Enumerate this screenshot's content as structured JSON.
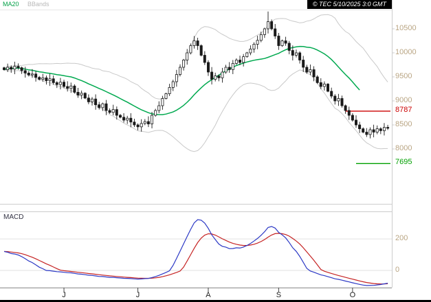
{
  "header": {
    "ma_label": "MA20",
    "bbands_label": "BBands",
    "copyright": "© TEC 5/10/2025 3:0 GMT"
  },
  "chart_data": {
    "type": "candlestick",
    "title": "",
    "x_axis": {
      "month_labels": [
        "J",
        "J",
        "A",
        "S",
        "O"
      ],
      "month_tick_indices": [
        17,
        38,
        58,
        78,
        99
      ]
    },
    "y_axis": {
      "ticks": [
        10500,
        10000,
        9500,
        9000,
        8500,
        8000
      ],
      "ylim": [
        6857,
        10886
      ],
      "label_color": "#b9a583"
    },
    "series": [
      {
        "name": "close",
        "values": [
          9650,
          9700,
          9660,
          9720,
          9690,
          9630,
          9580,
          9540,
          9560,
          9490,
          9450,
          9480,
          9420,
          9460,
          9380,
          9340,
          9390,
          9300,
          9260,
          9310,
          9180,
          9120,
          9160,
          9060,
          8980,
          9040,
          8920,
          8860,
          8940,
          8800,
          8760,
          8820,
          8700,
          8660,
          8600,
          8640,
          8560,
          8500,
          8460,
          8530,
          8570,
          8520,
          8700,
          8800,
          8900,
          9050,
          9150,
          9280,
          9400,
          9550,
          9700,
          9850,
          10000,
          10150,
          10250,
          10150,
          9950,
          9800,
          9600,
          9450,
          9520,
          9480,
          9600,
          9700,
          9650,
          9780,
          9850,
          9800,
          9920,
          10000,
          10080,
          10180,
          10260,
          10380,
          10500,
          10650,
          10500,
          10350,
          10150,
          10250,
          10200,
          10050,
          9950,
          10000,
          9850,
          9700,
          9600,
          9650,
          9500,
          9380,
          9300,
          9350,
          9200,
          9100,
          9000,
          9050,
          8900,
          8800,
          8700,
          8600,
          8500,
          8420,
          8350,
          8300,
          8400,
          8350,
          8420,
          8380,
          8450,
          8430
        ]
      }
    ],
    "overlays": [
      {
        "name": "MA20",
        "type": "sma",
        "window": 20,
        "color": "#00a94f"
      },
      {
        "name": "BBands",
        "type": "bollinger",
        "window": 20,
        "mult": 2,
        "color": "#c9c9c9"
      }
    ],
    "high_overrides": {
      "75": 10860
    },
    "levels": [
      {
        "label": "8787",
        "value": 8787,
        "color": "#cc0000"
      },
      {
        "label": "7695",
        "value": 7695,
        "color": "#00a000"
      }
    ],
    "macd": {
      "label": "MACD",
      "fast": 12,
      "slow": 26,
      "signal": 9,
      "seed_offset": 130,
      "ticks": [
        200,
        0
      ],
      "line_color": "#2b38c5",
      "signal_color": "#c52222"
    },
    "candle_color": "#1a1a1a"
  }
}
